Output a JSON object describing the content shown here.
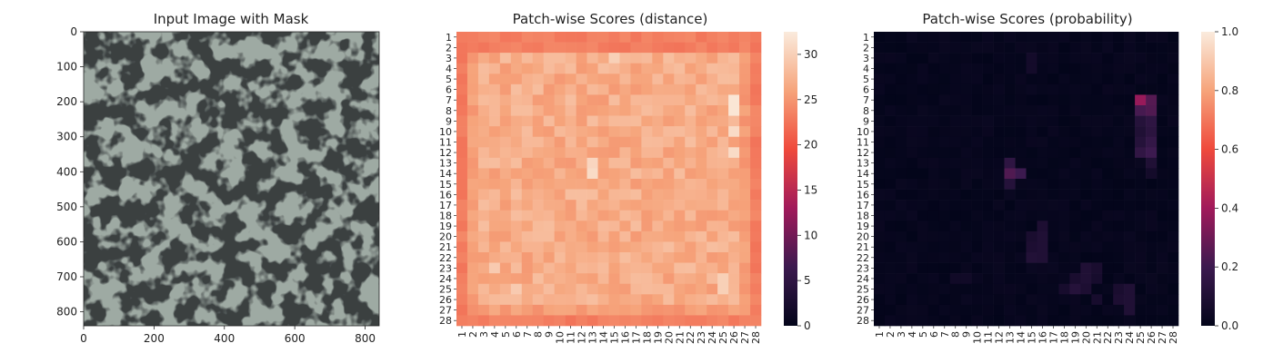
{
  "figure": {
    "panel1_title": "Input Image with Mask",
    "panel2_title": "Patch-wise Scores (distance)",
    "panel3_title": "Patch-wise Scores (probability)"
  },
  "chart_data": [
    {
      "type": "image",
      "title": "Input Image with Mask",
      "description_of_content": "grayscale textured surface photo",
      "x_ticks": [
        "0",
        "200",
        "400",
        "600",
        "800"
      ],
      "y_ticks": [
        "0",
        "100",
        "200",
        "300",
        "400",
        "500",
        "600",
        "700",
        "800"
      ],
      "xlim": [
        0,
        840
      ],
      "ylim": [
        840,
        0
      ],
      "image_colors": {
        "light": "#9eaaa3",
        "dark": "#3a3f40"
      }
    },
    {
      "type": "heatmap",
      "title": "Patch-wise Scores (distance)",
      "rows": [
        "1",
        "2",
        "3",
        "4",
        "5",
        "6",
        "7",
        "8",
        "9",
        "10",
        "11",
        "12",
        "13",
        "14",
        "15",
        "16",
        "17",
        "18",
        "19",
        "20",
        "21",
        "22",
        "23",
        "24",
        "25",
        "26",
        "27",
        "28"
      ],
      "cols": [
        "1",
        "2",
        "3",
        "4",
        "5",
        "6",
        "7",
        "8",
        "9",
        "10",
        "11",
        "12",
        "13",
        "14",
        "15",
        "16",
        "17",
        "18",
        "19",
        "20",
        "21",
        "22",
        "23",
        "24",
        "25",
        "26",
        "27",
        "28"
      ],
      "vmin": 0,
      "vmax": 32.5,
      "colorbar_ticks": [
        "0",
        "5",
        "10",
        "15",
        "20",
        "25",
        "30"
      ],
      "colormap": "rocket",
      "border_value": 22.5,
      "interior_base": 26.5,
      "hotspots": [
        {
          "row": 7,
          "col": 26,
          "value": 32
        },
        {
          "row": 8,
          "col": 26,
          "value": 32
        },
        {
          "row": 10,
          "col": 26,
          "value": 31
        },
        {
          "row": 12,
          "col": 26,
          "value": 31
        },
        {
          "row": 13,
          "col": 13,
          "value": 30.5
        },
        {
          "row": 14,
          "col": 13,
          "value": 31
        },
        {
          "row": 3,
          "col": 15,
          "value": 30
        },
        {
          "row": 24,
          "col": 25,
          "value": 30
        },
        {
          "row": 25,
          "col": 25,
          "value": 30
        },
        {
          "row": 23,
          "col": 4,
          "value": 29.5
        },
        {
          "row": 25,
          "col": 6,
          "value": 29.5
        }
      ]
    },
    {
      "type": "heatmap",
      "title": "Patch-wise Scores (probability)",
      "rows": [
        "1",
        "2",
        "3",
        "4",
        "5",
        "6",
        "7",
        "8",
        "9",
        "10",
        "11",
        "12",
        "13",
        "14",
        "15",
        "16",
        "17",
        "18",
        "19",
        "20",
        "21",
        "22",
        "23",
        "24",
        "25",
        "26",
        "27",
        "28"
      ],
      "cols": [
        "1",
        "2",
        "3",
        "4",
        "5",
        "6",
        "7",
        "8",
        "9",
        "10",
        "11",
        "12",
        "13",
        "14",
        "15",
        "16",
        "17",
        "18",
        "19",
        "20",
        "21",
        "22",
        "23",
        "24",
        "25",
        "26",
        "27",
        "28"
      ],
      "vmin": 0,
      "vmax": 1,
      "colorbar_ticks": [
        "0.0",
        "0.2",
        "0.4",
        "0.6",
        "0.8",
        "1.0"
      ],
      "colormap": "rocket",
      "hotspots": [
        {
          "row": 7,
          "col": 25,
          "value": 0.38
        },
        {
          "row": 7,
          "col": 26,
          "value": 0.25
        },
        {
          "row": 8,
          "col": 25,
          "value": 0.22
        },
        {
          "row": 8,
          "col": 26,
          "value": 0.24
        },
        {
          "row": 9,
          "col": 25,
          "value": 0.12
        },
        {
          "row": 9,
          "col": 26,
          "value": 0.15
        },
        {
          "row": 10,
          "col": 25,
          "value": 0.1
        },
        {
          "row": 10,
          "col": 26,
          "value": 0.14
        },
        {
          "row": 11,
          "col": 25,
          "value": 0.12
        },
        {
          "row": 11,
          "col": 26,
          "value": 0.17
        },
        {
          "row": 12,
          "col": 25,
          "value": 0.16
        },
        {
          "row": 12,
          "col": 26,
          "value": 0.2
        },
        {
          "row": 13,
          "col": 26,
          "value": 0.1
        },
        {
          "row": 14,
          "col": 26,
          "value": 0.06
        },
        {
          "row": 13,
          "col": 13,
          "value": 0.15
        },
        {
          "row": 14,
          "col": 13,
          "value": 0.24
        },
        {
          "row": 14,
          "col": 14,
          "value": 0.2
        },
        {
          "row": 15,
          "col": 13,
          "value": 0.12
        },
        {
          "row": 19,
          "col": 16,
          "value": 0.09
        },
        {
          "row": 20,
          "col": 15,
          "value": 0.08
        },
        {
          "row": 20,
          "col": 16,
          "value": 0.1
        },
        {
          "row": 21,
          "col": 15,
          "value": 0.09
        },
        {
          "row": 21,
          "col": 16,
          "value": 0.1
        },
        {
          "row": 22,
          "col": 15,
          "value": 0.11
        },
        {
          "row": 22,
          "col": 16,
          "value": 0.1
        },
        {
          "row": 23,
          "col": 20,
          "value": 0.1
        },
        {
          "row": 23,
          "col": 21,
          "value": 0.08
        },
        {
          "row": 24,
          "col": 19,
          "value": 0.08
        },
        {
          "row": 24,
          "col": 20,
          "value": 0.1
        },
        {
          "row": 24,
          "col": 21,
          "value": 0.07
        },
        {
          "row": 25,
          "col": 18,
          "value": 0.07
        },
        {
          "row": 25,
          "col": 19,
          "value": 0.12
        },
        {
          "row": 25,
          "col": 20,
          "value": 0.09
        },
        {
          "row": 25,
          "col": 23,
          "value": 0.08
        },
        {
          "row": 25,
          "col": 24,
          "value": 0.1
        },
        {
          "row": 26,
          "col": 21,
          "value": 0.07
        },
        {
          "row": 26,
          "col": 23,
          "value": 0.09
        },
        {
          "row": 26,
          "col": 24,
          "value": 0.1
        },
        {
          "row": 27,
          "col": 24,
          "value": 0.1
        },
        {
          "row": 3,
          "col": 15,
          "value": 0.06
        },
        {
          "row": 4,
          "col": 15,
          "value": 0.06
        },
        {
          "row": 24,
          "col": 8,
          "value": 0.05
        },
        {
          "row": 24,
          "col": 9,
          "value": 0.05
        }
      ]
    }
  ]
}
